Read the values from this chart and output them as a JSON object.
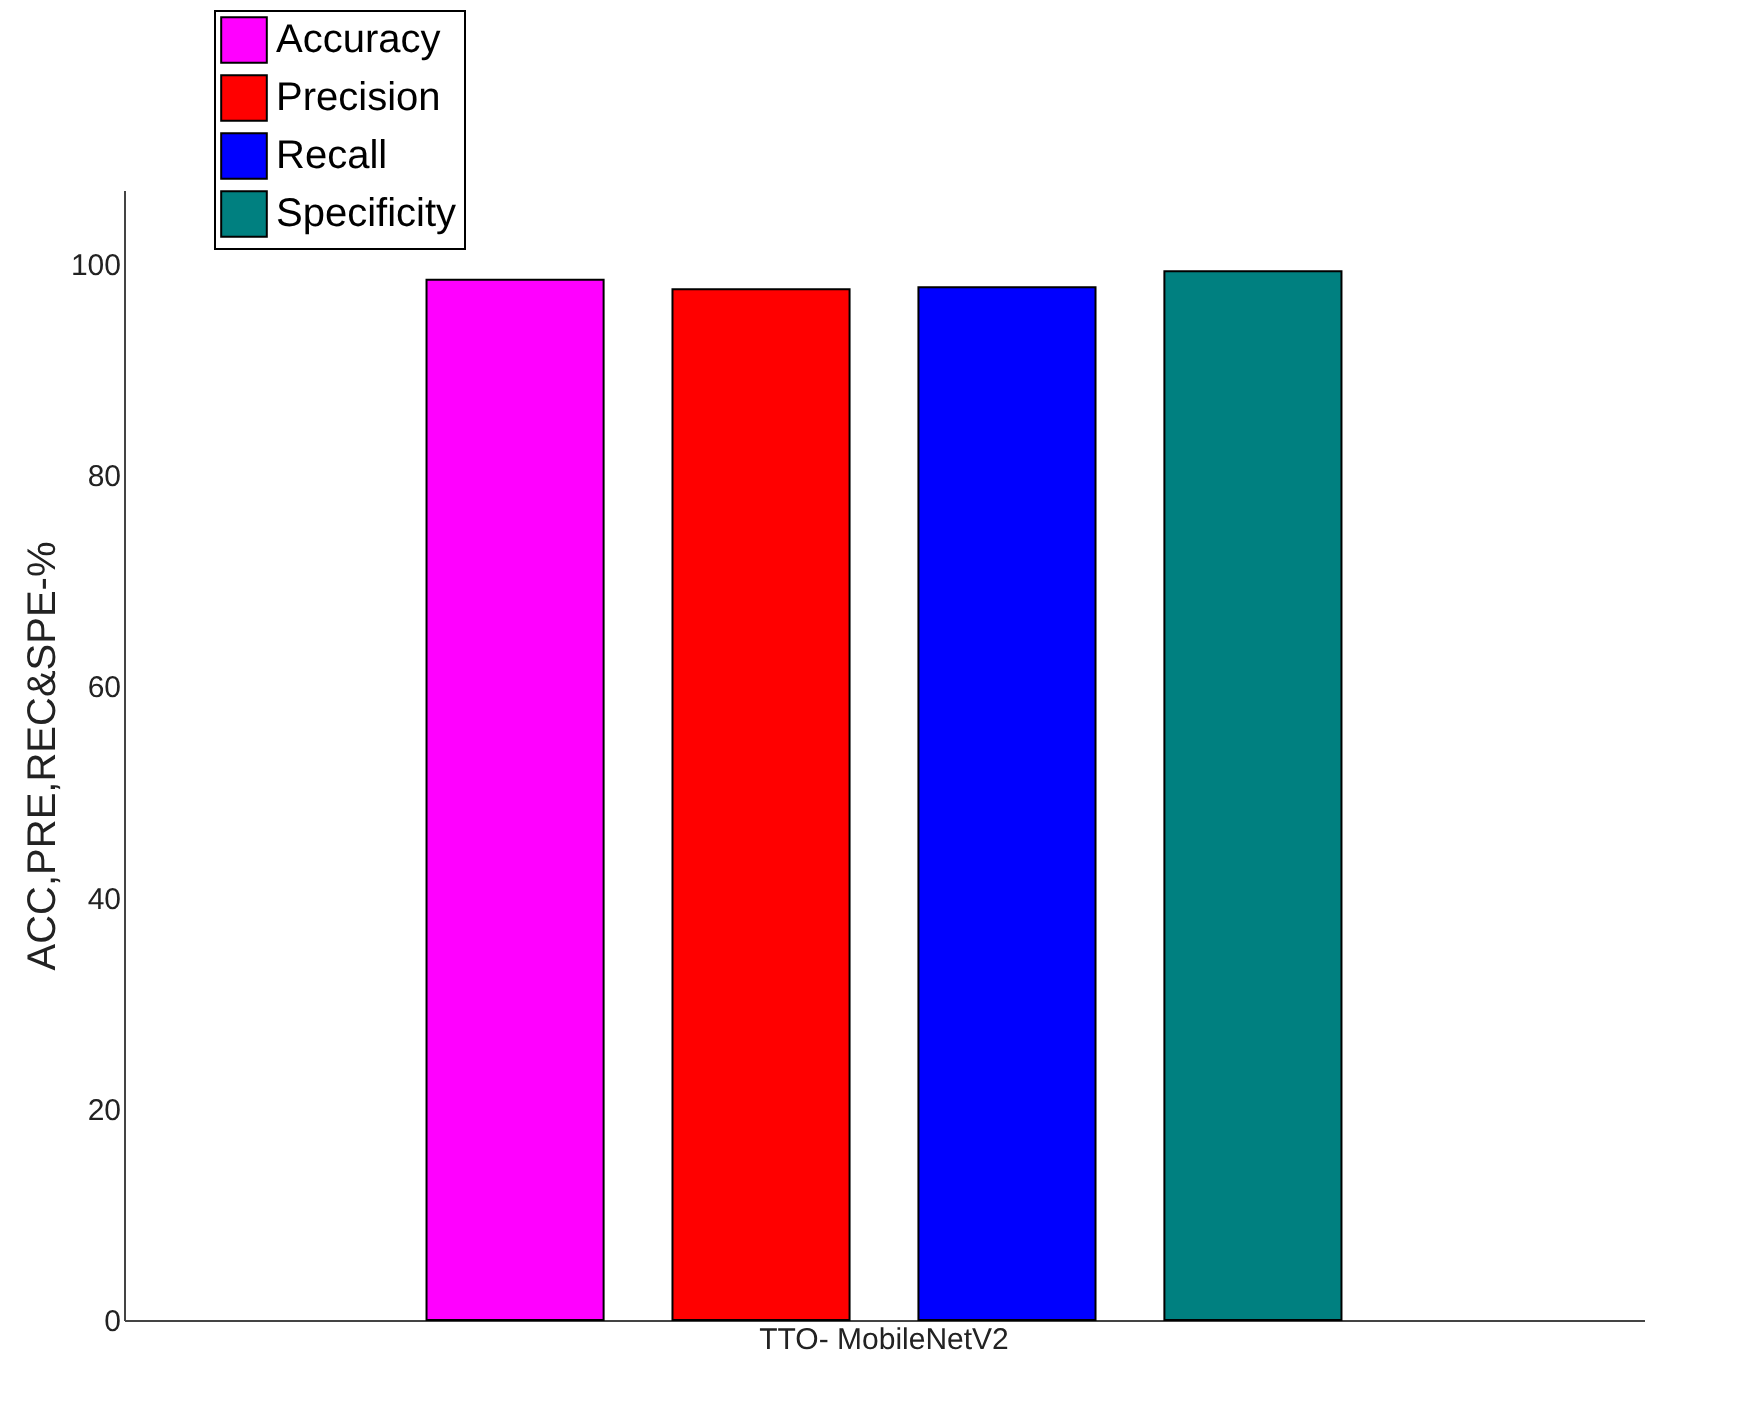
{
  "chart_data": {
    "type": "bar",
    "categories": [
      "TTO- MobileNetV2"
    ],
    "ylabel": "ACC,PRE,REC&SPE-%",
    "series": [
      {
        "name": "Accuracy",
        "color": "#ff00ff",
        "values": [
          98.5
        ]
      },
      {
        "name": "Precision",
        "color": "#ff0000",
        "values": [
          97.6
        ]
      },
      {
        "name": "Recall",
        "color": "#0000ff",
        "values": [
          97.8
        ]
      },
      {
        "name": "Specificity",
        "color": "#008080",
        "values": [
          99.3
        ]
      }
    ],
    "ylim": [
      0,
      107
    ],
    "yticks": [
      0,
      20,
      40,
      60,
      80,
      100
    ],
    "grid": false,
    "legend": "top left"
  }
}
